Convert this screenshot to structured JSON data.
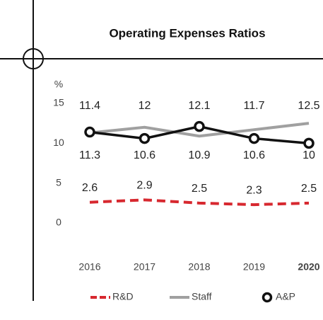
{
  "chart_data": {
    "type": "line",
    "title": "Operating Expenses Ratios",
    "y_unit": "%",
    "categories": [
      "2016",
      "2017",
      "2018",
      "2019",
      "2020"
    ],
    "series": [
      {
        "name": "R&D",
        "color": "#d7282f",
        "style": "dashed",
        "values": [
          2.6,
          2.9,
          2.5,
          2.3,
          2.5
        ]
      },
      {
        "name": "Staff",
        "color": "#a0a0a0",
        "style": "solid",
        "values": [
          11.3,
          12.0,
          10.9,
          11.7,
          12.5
        ]
      },
      {
        "name": "A&P",
        "color": "#111111",
        "style": "markers",
        "values": [
          11.4,
          10.6,
          12.1,
          10.6,
          10.0
        ]
      }
    ],
    "ylim": [
      0,
      15
    ],
    "yticks": [
      0,
      5,
      10,
      15
    ],
    "grid": false,
    "legend": "bottom"
  }
}
